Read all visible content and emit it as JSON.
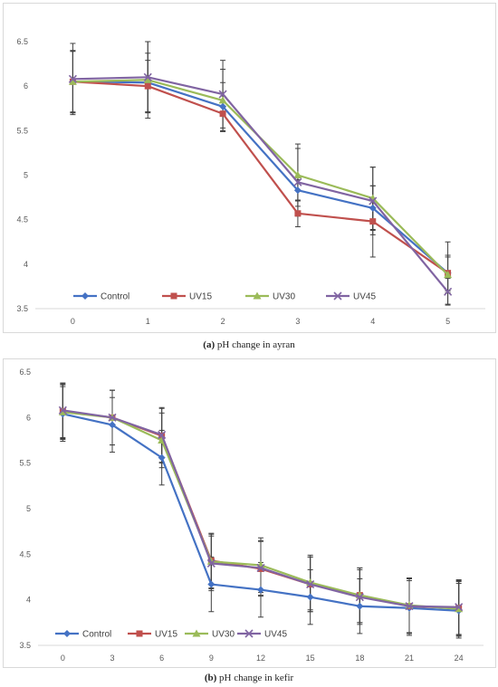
{
  "chart_data": [
    {
      "type": "line",
      "caption_label": "(a)",
      "caption_text": "pH change in ayran",
      "categories": [
        "0",
        "1",
        "2",
        "3",
        "4",
        "5"
      ],
      "ylim": [
        3.5,
        6.5
      ],
      "yticks": [
        "3.5",
        "4",
        "4.5",
        "5",
        "5.5",
        "6",
        "6.5"
      ],
      "grid": false,
      "legend_position": "bottom-left",
      "series": [
        {
          "name": "Control",
          "color": "#4472C4",
          "marker": "diamond",
          "values": [
            6.05,
            6.04,
            5.77,
            4.83,
            4.63,
            3.9
          ],
          "errors": [
            0.35,
            0.33,
            0.27,
            0.12,
            0.25,
            0.2
          ]
        },
        {
          "name": "UV15",
          "color": "#C0504D",
          "marker": "square",
          "values": [
            6.05,
            6.0,
            5.69,
            4.57,
            4.48,
            3.9
          ],
          "errors": [
            0.34,
            0.29,
            0.2,
            0.15,
            0.4,
            0.35
          ]
        },
        {
          "name": "UV30",
          "color": "#9BBB59",
          "marker": "triangle",
          "values": [
            6.05,
            6.07,
            5.84,
            5.0,
            4.74,
            3.88
          ],
          "errors": [
            0.35,
            0.43,
            0.35,
            0.35,
            0.35,
            0.2
          ]
        },
        {
          "name": "UV45",
          "color": "#8064A2",
          "marker": "x",
          "values": [
            6.08,
            6.1,
            5.91,
            4.92,
            4.71,
            3.69
          ],
          "errors": [
            0.4,
            0.4,
            0.38,
            0.38,
            0.38,
            0.15
          ]
        }
      ]
    },
    {
      "type": "line",
      "caption_label": "(b)",
      "caption_text": "pH change in kefir",
      "categories": [
        "0",
        "3",
        "6",
        "9",
        "12",
        "15",
        "18",
        "21",
        "24"
      ],
      "ylim": [
        3.5,
        6.5
      ],
      "yticks": [
        "3.5",
        "4",
        "4.5",
        "5",
        "5.5",
        "6",
        "6.5"
      ],
      "grid": false,
      "legend_position": "bottom-left",
      "series": [
        {
          "name": "Control",
          "color": "#4472C4",
          "marker": "diamond",
          "values": [
            6.04,
            5.92,
            5.56,
            4.17,
            4.11,
            4.03,
            3.93,
            3.91,
            3.88
          ],
          "errors": [
            0.3,
            0.3,
            0.3,
            0.3,
            0.3,
            0.3,
            0.3,
            0.3,
            0.3
          ]
        },
        {
          "name": "UV15",
          "color": "#C0504D",
          "marker": "square",
          "values": [
            6.07,
            6.0,
            5.8,
            4.43,
            4.34,
            4.17,
            4.05,
            3.93,
            3.91
          ],
          "errors": [
            0.3,
            0.3,
            0.3,
            0.3,
            0.3,
            0.3,
            0.3,
            0.3,
            0.3
          ]
        },
        {
          "name": "UV30",
          "color": "#9BBB59",
          "marker": "triangle",
          "values": [
            6.06,
            6.0,
            5.75,
            4.42,
            4.38,
            4.19,
            4.05,
            3.94,
            3.9
          ],
          "errors": [
            0.3,
            0.3,
            0.3,
            0.3,
            0.3,
            0.3,
            0.3,
            0.3,
            0.3
          ]
        },
        {
          "name": "UV45",
          "color": "#8064A2",
          "marker": "x",
          "values": [
            6.08,
            6.0,
            5.81,
            4.4,
            4.35,
            4.17,
            4.03,
            3.93,
            3.92
          ],
          "errors": [
            0.3,
            0.3,
            0.3,
            0.3,
            0.3,
            0.3,
            0.3,
            0.3,
            0.3
          ]
        }
      ]
    }
  ]
}
